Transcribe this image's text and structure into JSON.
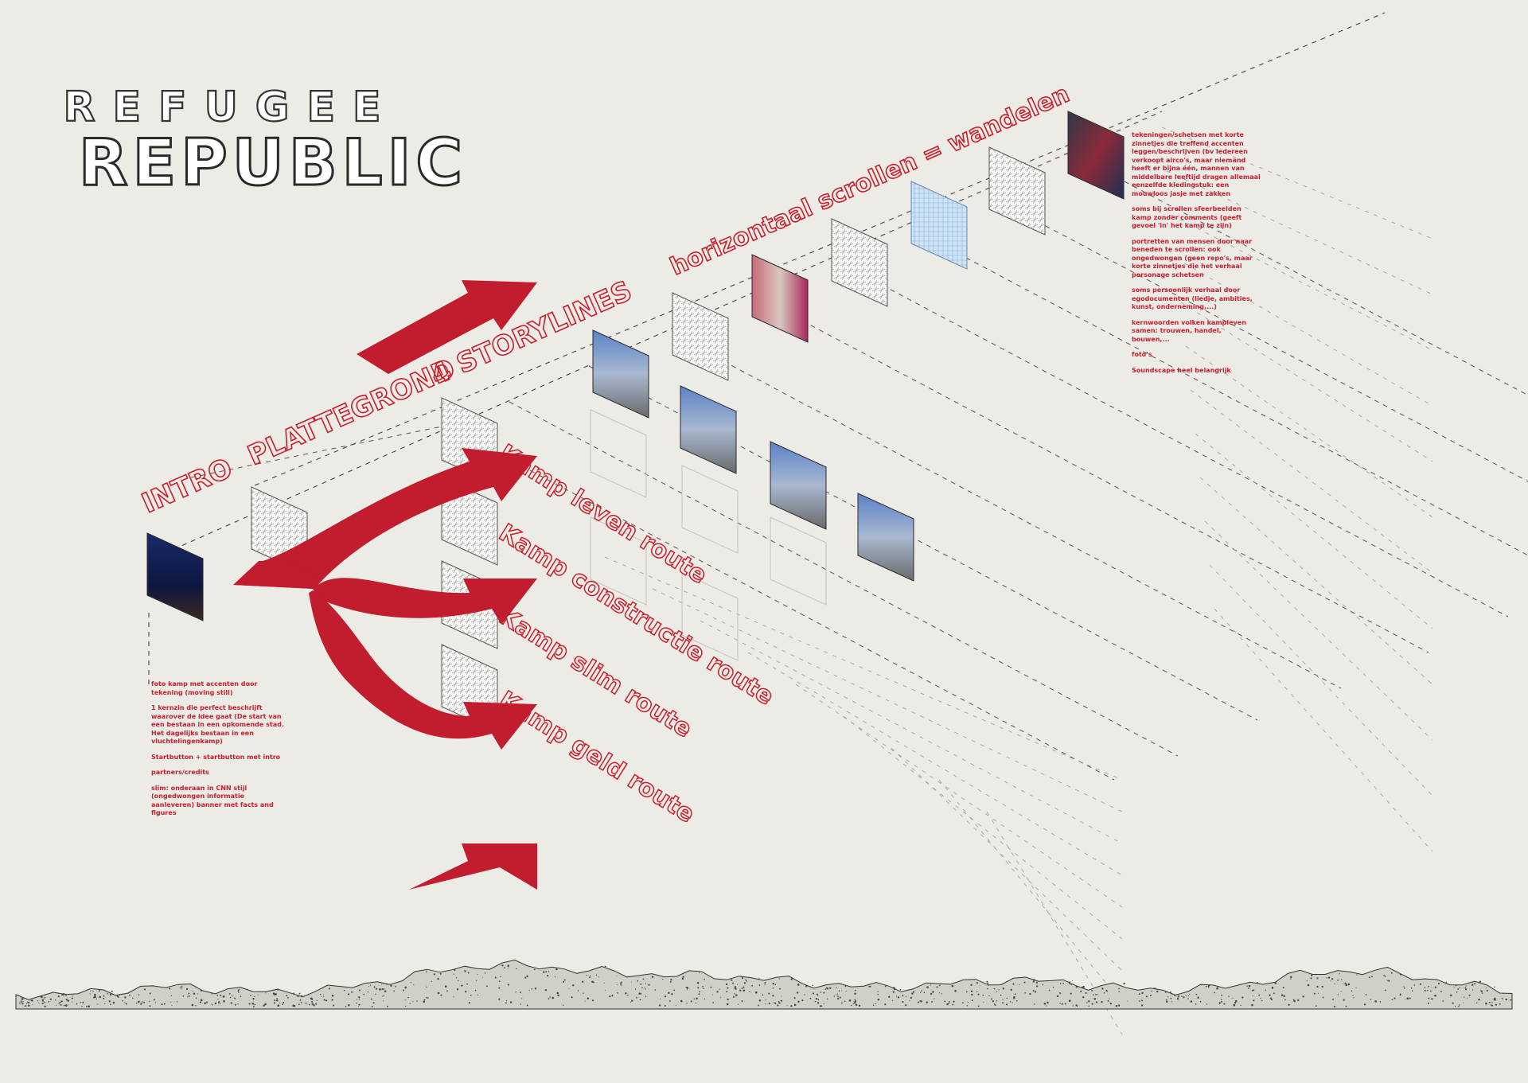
{
  "title": {
    "top": "REFUGEE",
    "bottom": "REPUBLIC"
  },
  "sections": {
    "intro": "INTRO",
    "plattegrond": "PLATTEGROND",
    "storylines": "4 STORYLINES",
    "scroll": "horizontaal scrollen = wandelen"
  },
  "routes": [
    "Kamp leven route",
    "Kamp constructie route",
    "Kamp slim route",
    "Kamp geld route"
  ],
  "notes_left": [
    "foto kamp met accenten door tekening (moving still)",
    "1 kernzin die perfect beschrijft waarover de idee gaat (De start van een bestaan in een opkomende stad. Het dagelijks bestaan in een vluchtelingenkamp)",
    "Startbutton + startbutton met intro",
    "partners/credits",
    "slim: onderaan in CNN stijl (ongedwongen informatie aanleveren) banner met facts and figures"
  ],
  "notes_right": [
    "tekeningen/schetsen met korte zinnetjes die treffend accenten leggen/beschrijven (bv iedereen verkoopt airco's, maar niemand heeft er bijna één, mannen van middelbare leeftijd dragen allemaal eenzelfde kledingstuk: een mouwloos jasje met zakken",
    "soms bij scrollen sfeerbeelden kamp zonder comments (geeft gevoel 'in' het kamp te zijn)",
    "portretten van mensen door naar beneden te scrollen: ook ongedwongen (geen repo's, maar korte zinnetjes die het verhaal personage schetsen",
    "soms persoonlijk verhaal door egodocumenten (liedje, ambities, kunst, onderneming,...)",
    "kernwoorden volken kampleven samen: trouwen, handel, bouwen,...",
    "foto's",
    "Soundscape heel belangrijk"
  ],
  "colors": {
    "accent": "#c8202e",
    "paper": "#ecebe5",
    "ink": "#2a2a2a"
  }
}
